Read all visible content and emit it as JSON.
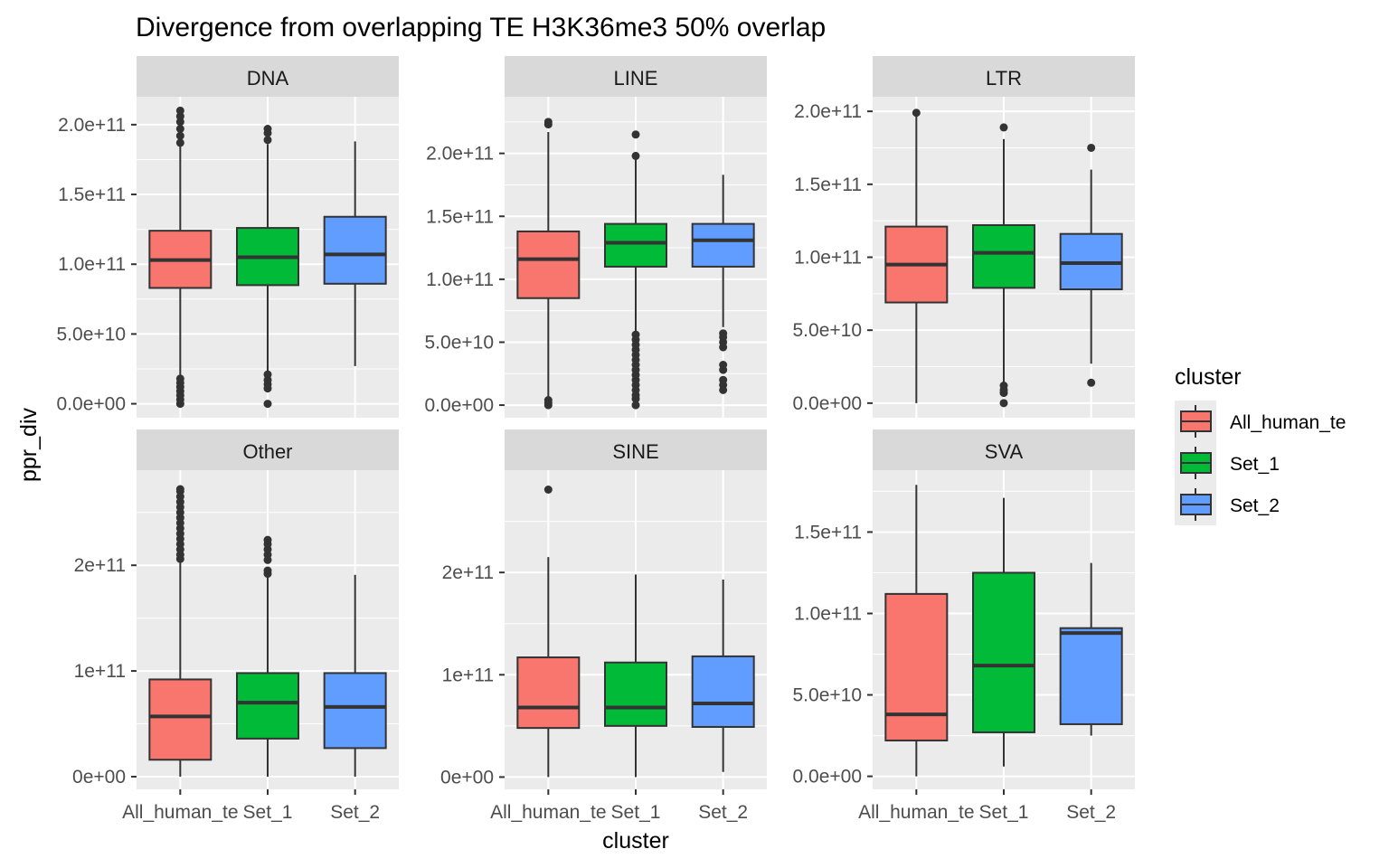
{
  "chart_data": {
    "type": "boxplot",
    "title": "Divergence from overlapping TE H3K36me3 50% overlap",
    "xlabel": "cluster",
    "ylabel": "ppr_div",
    "categories": [
      "All_human_te",
      "Set_1",
      "Set_2"
    ],
    "legend": {
      "title": "cluster",
      "position": "right",
      "entries": [
        {
          "label": "All_human_te",
          "color": "#F8766D"
        },
        {
          "label": "Set_1",
          "color": "#00BA38"
        },
        {
          "label": "Set_2",
          "color": "#619CFF"
        }
      ]
    },
    "grid": true,
    "facets": [
      {
        "name": "DNA",
        "ylim": [
          -10000000000.0,
          220000000000.0
        ],
        "yticks": [
          0,
          50000000000.0,
          100000000000.0,
          150000000000.0,
          200000000000.0
        ],
        "ytick_labels": [
          "0.0e+00",
          "5.0e+10",
          "1.0e+11",
          "1.5e+11",
          "2.0e+11"
        ],
        "boxes": [
          {
            "q1": 83000000000.0,
            "median": 103000000000.0,
            "q3": 124000000000.0,
            "whisker_low": 19000000000.0,
            "whisker_high": 185000000000.0,
            "outliers": [
              0,
              3000000000.0,
              6000000000.0,
              9000000000.0,
              12000000000.0,
              15000000000.0,
              18000000000.0,
              187000000000.0,
              192000000000.0,
              197000000000.0,
              202000000000.0,
              206000000000.0,
              210000000000.0
            ]
          },
          {
            "q1": 85000000000.0,
            "median": 105000000000.0,
            "q3": 126000000000.0,
            "whisker_low": 23000000000.0,
            "whisker_high": 186000000000.0,
            "outliers": [
              0,
              11000000000.0,
              14000000000.0,
              17000000000.0,
              21000000000.0,
              189000000000.0,
              194000000000.0,
              197000000000.0
            ]
          },
          {
            "q1": 86000000000.0,
            "median": 107000000000.0,
            "q3": 134000000000.0,
            "whisker_low": 27000000000.0,
            "whisker_high": 188000000000.0,
            "outliers": []
          }
        ]
      },
      {
        "name": "LINE",
        "ylim": [
          -10000000000.0,
          245000000000.0
        ],
        "yticks": [
          0,
          50000000000.0,
          100000000000.0,
          150000000000.0,
          200000000000.0
        ],
        "ytick_labels": [
          "0.0e+00",
          "5.0e+10",
          "1.0e+11",
          "1.5e+11",
          "2.0e+11"
        ],
        "boxes": [
          {
            "q1": 85000000000.0,
            "median": 116000000000.0,
            "q3": 138000000000.0,
            "whisker_low": 6000000000.0,
            "whisker_high": 217000000000.0,
            "outliers": [
              0,
              2000000000.0,
              4000000000.0,
              223000000000.0,
              225000000000.0
            ]
          },
          {
            "q1": 110000000000.0,
            "median": 129000000000.0,
            "q3": 144000000000.0,
            "whisker_low": 58000000000.0,
            "whisker_high": 196000000000.0,
            "outliers": [
              0,
              5000000000.0,
              8000000000.0,
              12000000000.0,
              16000000000.0,
              20000000000.0,
              24000000000.0,
              28000000000.0,
              32000000000.0,
              36000000000.0,
              40000000000.0,
              44000000000.0,
              48000000000.0,
              52000000000.0,
              56000000000.0,
              198000000000.0,
              215000000000.0
            ]
          },
          {
            "q1": 110000000000.0,
            "median": 131000000000.0,
            "q3": 144000000000.0,
            "whisker_low": 62000000000.0,
            "whisker_high": 183000000000.0,
            "outliers": [
              12000000000.0,
              16000000000.0,
              20000000000.0,
              28000000000.0,
              32000000000.0,
              46000000000.0,
              50000000000.0,
              54000000000.0,
              57000000000.0
            ]
          }
        ]
      },
      {
        "name": "LTR",
        "ylim": [
          -10000000000.0,
          210000000000.0
        ],
        "yticks": [
          0,
          50000000000.0,
          100000000000.0,
          150000000000.0,
          200000000000.0
        ],
        "ytick_labels": [
          "0.0e+00",
          "5.0e+10",
          "1.0e+11",
          "1.5e+11",
          "2.0e+11"
        ],
        "boxes": [
          {
            "q1": 69000000000.0,
            "median": 95000000000.0,
            "q3": 121000000000.0,
            "whisker_low": 0,
            "whisker_high": 198000000000.0,
            "outliers": [
              199000000000.0
            ]
          },
          {
            "q1": 79000000000.0,
            "median": 103000000000.0,
            "q3": 122000000000.0,
            "whisker_low": 13000000000.0,
            "whisker_high": 181000000000.0,
            "outliers": [
              0,
              7000000000.0,
              9000000000.0,
              12000000000.0,
              189000000000.0
            ]
          },
          {
            "q1": 78000000000.0,
            "median": 96000000000.0,
            "q3": 116000000000.0,
            "whisker_low": 27000000000.0,
            "whisker_high": 160000000000.0,
            "outliers": [
              14000000000.0,
              175000000000.0
            ]
          }
        ]
      },
      {
        "name": "Other",
        "ylim": [
          -12000000000.0,
          290000000000.0
        ],
        "yticks": [
          0,
          100000000000.0,
          200000000000.0
        ],
        "ytick_labels": [
          "0e+00",
          "1e+11",
          "2e+11"
        ],
        "boxes": [
          {
            "q1": 16000000000.0,
            "median": 57000000000.0,
            "q3": 92000000000.0,
            "whisker_low": 0,
            "whisker_high": 204000000000.0,
            "outliers": [
              206000000000.0,
              210000000000.0,
              215000000000.0,
              220000000000.0,
              225000000000.0,
              230000000000.0,
              235000000000.0,
              240000000000.0,
              245000000000.0,
              250000000000.0,
              255000000000.0,
              260000000000.0,
              265000000000.0,
              270000000000.0,
              272000000000.0
            ]
          },
          {
            "q1": 36000000000.0,
            "median": 70000000000.0,
            "q3": 98000000000.0,
            "whisker_low": 0,
            "whisker_high": 189000000000.0,
            "outliers": [
              192000000000.0,
              195000000000.0,
              205000000000.0,
              210000000000.0,
              215000000000.0,
              220000000000.0,
              224000000000.0
            ]
          },
          {
            "q1": 27000000000.0,
            "median": 66000000000.0,
            "q3": 98000000000.0,
            "whisker_low": 0,
            "whisker_high": 191000000000.0,
            "outliers": []
          }
        ]
      },
      {
        "name": "SINE",
        "ylim": [
          -12000000000.0,
          300000000000.0
        ],
        "yticks": [
          0,
          100000000000.0,
          200000000000.0
        ],
        "ytick_labels": [
          "0e+00",
          "1e+11",
          "2e+11"
        ],
        "boxes": [
          {
            "q1": 48000000000.0,
            "median": 68000000000.0,
            "q3": 117000000000.0,
            "whisker_low": 0,
            "whisker_high": 215000000000.0,
            "outliers": [
              281000000000.0
            ]
          },
          {
            "q1": 50000000000.0,
            "median": 68000000000.0,
            "q3": 112000000000.0,
            "whisker_low": 0,
            "whisker_high": 198000000000.0,
            "outliers": []
          },
          {
            "q1": 49000000000.0,
            "median": 72000000000.0,
            "q3": 118000000000.0,
            "whisker_low": 5000000000.0,
            "whisker_high": 193000000000.0,
            "outliers": []
          }
        ]
      },
      {
        "name": "SVA",
        "ylim": [
          -8000000000.0,
          188000000000.0
        ],
        "yticks": [
          0,
          50000000000.0,
          100000000000.0,
          150000000000.0
        ],
        "ytick_labels": [
          "0.0e+00",
          "5.0e+10",
          "1.0e+11",
          "1.5e+11"
        ],
        "boxes": [
          {
            "q1": 22000000000.0,
            "median": 38000000000.0,
            "q3": 112000000000.0,
            "whisker_low": 0,
            "whisker_high": 179000000000.0,
            "outliers": []
          },
          {
            "q1": 27000000000.0,
            "median": 68000000000.0,
            "q3": 125000000000.0,
            "whisker_low": 6000000000.0,
            "whisker_high": 171000000000.0,
            "outliers": []
          },
          {
            "q1": 32000000000.0,
            "median": 88000000000.0,
            "q3": 91000000000.0,
            "whisker_low": 25000000000.0,
            "whisker_high": 131000000000.0,
            "outliers": []
          }
        ]
      }
    ]
  }
}
